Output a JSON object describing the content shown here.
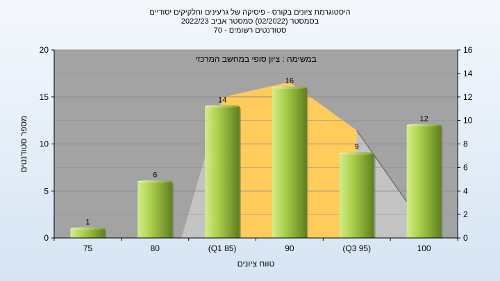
{
  "chart_data": {
    "type": "bar",
    "title_lines": [
      "היסטוגרמת ציונים בקורס - פיסיקה של גרעינים וחלקיקים יסודיים",
      "בסמסטר  (02/2022)  סמסטר אביב 2022/23",
      "סטודנטים רשומים - 70"
    ],
    "annotation": "במשימה : ציון סופי במחשב המרכזי",
    "xlabel": "טווח ציונים",
    "ylabel": "מספר סטודנטים",
    "categories": [
      "75",
      "80",
      "(Q1 85)",
      "90",
      "(Q3 95)",
      "100"
    ],
    "values": [
      1,
      6,
      14,
      16,
      9,
      12
    ],
    "ylim": [
      0,
      20
    ],
    "y_ticks": [
      0,
      5,
      10,
      15,
      20
    ],
    "y2lim": [
      0,
      16
    ],
    "y2_ticks": [
      0,
      2,
      4,
      6,
      8,
      10,
      12,
      14,
      16
    ],
    "iqr_band_top": [
      14,
      16,
      9
    ],
    "grid": true,
    "colors": {
      "plot_bg": "#a3a3a3",
      "bar_light": "#d4ec8a",
      "bar_dark": "#5e7f1c",
      "iqr_fill": "#ffcb5a",
      "gray_area": "#c3c3c3"
    }
  }
}
